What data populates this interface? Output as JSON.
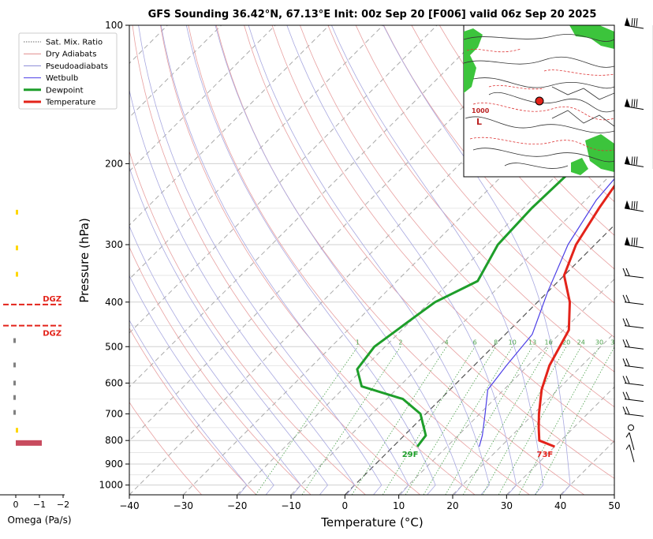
{
  "title": "GFS Sounding 36.42°N, 67.13°E Init: 00z Sep 20 [F006] valid 06z Sep 20 2025",
  "legend": [
    {
      "label": "Sat. Mix. Ratio",
      "color": "#6a6a6a",
      "style": "dotted"
    },
    {
      "label": "Dry Adiabats",
      "color": "#e08a8a",
      "style": "solid"
    },
    {
      "label": "Pseudoadiabats",
      "color": "#8a8ad6",
      "style": "solid"
    },
    {
      "label": "Wetbulb",
      "color": "#4b3ee6",
      "style": "solid"
    },
    {
      "label": "Dewpoint",
      "color": "#1e9e2a",
      "style": "thick"
    },
    {
      "label": "Temperature",
      "color": "#e3231a",
      "style": "thick"
    }
  ],
  "omega": {
    "xlabel": "Omega (Pa/s)",
    "ticks": [
      "0",
      "−1",
      "−2"
    ],
    "dgz_label": "DGZ"
  },
  "inset_map": {
    "labels": [
      "1000",
      "L"
    ]
  },
  "chart_data": {
    "type": "line",
    "title": "GFS Sounding 36.42°N, 67.13°E Init: 00z Sep 20 [F006] valid 06z Sep 20 2025",
    "xlabel": "Temperature (°C)",
    "ylabel": "Pressure (hPa)",
    "x_range": [
      -40,
      50
    ],
    "y_range": [
      1050,
      100
    ],
    "y_scale": "log",
    "x_ticks": [
      -40,
      -30,
      -20,
      -10,
      0,
      10,
      20,
      30,
      40,
      50
    ],
    "x_tick_labels": [
      "−40",
      "−30",
      "−20",
      "−10",
      "0",
      "10",
      "20",
      "30",
      "40",
      "50"
    ],
    "y_ticks": [
      100,
      200,
      300,
      400,
      500,
      600,
      700,
      800,
      900,
      1000
    ],
    "y_tick_labels": [
      "100",
      "200",
      "300",
      "400",
      "500",
      "600",
      "700",
      "800",
      "900",
      "1000"
    ],
    "series": [
      {
        "name": "Temperature",
        "color": "#e3231a",
        "points": [
          [
            30,
            825
          ],
          [
            26,
            800
          ],
          [
            23.5,
            750
          ],
          [
            21,
            700
          ],
          [
            17,
            620
          ],
          [
            14,
            550
          ],
          [
            11,
            460
          ],
          [
            6,
            400
          ],
          [
            0,
            350
          ],
          [
            -3.5,
            300
          ],
          [
            -6,
            250
          ],
          [
            -8.5,
            200
          ],
          [
            -11,
            155
          ],
          [
            -10.5,
            130
          ],
          [
            -9,
            100
          ]
        ]
      },
      {
        "name": "Dewpoint",
        "color": "#1e9e2a",
        "points": [
          [
            4.5,
            825
          ],
          [
            4,
            780
          ],
          [
            -1,
            700
          ],
          [
            -7,
            650
          ],
          [
            -17,
            610
          ],
          [
            -21,
            560
          ],
          [
            -22,
            500
          ],
          [
            -20,
            430
          ],
          [
            -19,
            400
          ],
          [
            -15,
            360
          ],
          [
            -18,
            300
          ],
          [
            -18.5,
            250
          ],
          [
            -18,
            200
          ],
          [
            -24,
            150
          ],
          [
            -19,
            100
          ]
        ]
      },
      {
        "name": "Wetbulb",
        "color": "#4b3ee6",
        "points": [
          [
            16,
            825
          ],
          [
            14.5,
            780
          ],
          [
            11,
            700
          ],
          [
            7,
            620
          ],
          [
            6,
            550
          ],
          [
            5,
            470
          ],
          [
            0,
            380
          ],
          [
            -5,
            300
          ],
          [
            -8,
            240
          ],
          [
            -9,
            200
          ]
        ]
      }
    ],
    "surface_labels": [
      {
        "text": "29F",
        "t": 4.5,
        "p": 855,
        "color": "#1e9e2a"
      },
      {
        "text": "73F",
        "t": 29.5,
        "p": 855,
        "color": "#e3231a"
      }
    ],
    "mixing_ratio_labels": [
      "1",
      "2",
      "4",
      "6",
      "8",
      "10",
      "13",
      "16",
      "20",
      "24",
      "30",
      "36"
    ],
    "mixing_ratio_values": [
      1,
      2,
      4,
      6,
      8,
      10,
      13,
      16,
      20,
      24,
      30,
      36
    ],
    "mixing_ratio_label_pressure": 500,
    "omega_bars": [
      {
        "p": 255,
        "value": -0.03,
        "color": "#ffd700"
      },
      {
        "p": 305,
        "value": -0.03,
        "color": "#ffd700"
      },
      {
        "p": 348,
        "value": -0.03,
        "color": "#ffd700"
      },
      {
        "p": 485,
        "value": 0.02,
        "color": "#808080"
      },
      {
        "p": 548,
        "value": 0.07,
        "color": "#808080"
      },
      {
        "p": 600,
        "value": 0.1,
        "color": "#808080"
      },
      {
        "p": 645,
        "value": 0.07,
        "color": "#808080"
      },
      {
        "p": 695,
        "value": 0.06,
        "color": "#808080"
      },
      {
        "p": 760,
        "value": -0.1,
        "color": "#ffd700"
      },
      {
        "p": 810,
        "value": -1.1,
        "color": "#c84b5e"
      }
    ],
    "dgz_bounds_hpa": [
      405,
      450
    ],
    "wind_barbs": [
      {
        "p": 100,
        "label": "pennant"
      },
      {
        "p": 150,
        "label": "pennant"
      },
      {
        "p": 200,
        "label": "pennant"
      },
      {
        "p": 250,
        "label": "pennant"
      },
      {
        "p": 300,
        "label": "pennant"
      },
      {
        "p": 350,
        "label": "full"
      },
      {
        "p": 400,
        "label": "full"
      },
      {
        "p": 450,
        "label": "full"
      },
      {
        "p": 500,
        "label": "full"
      },
      {
        "p": 550,
        "label": "full"
      },
      {
        "p": 600,
        "label": "full"
      },
      {
        "p": 650,
        "label": "full"
      },
      {
        "p": 700,
        "label": "full"
      },
      {
        "p": 750,
        "label": "calm"
      },
      {
        "p": 800,
        "label": "half"
      },
      {
        "p": 850,
        "label": "half"
      }
    ]
  }
}
